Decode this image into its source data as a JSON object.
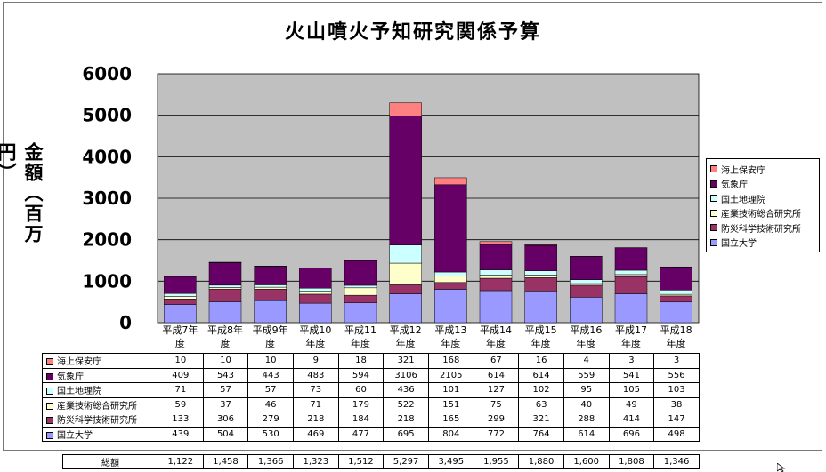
{
  "chart_data": {
    "type": "bar",
    "stacked": true,
    "title": "火山噴火予知研究関係予算",
    "ylabel": "金額（百万円）",
    "xlabel": "",
    "ylim": [
      0,
      6000
    ],
    "yticks": [
      "0",
      "1000",
      "2000",
      "3000",
      "4000",
      "5000",
      "6000"
    ],
    "grid": true,
    "legend_position": "right",
    "categories": [
      "平成7年度",
      "平成8年度",
      "平成9年度",
      "平成10年度",
      "平成11年度",
      "平成12年度",
      "平成13年度",
      "平成14年度",
      "平成15年度",
      "平成16年度",
      "平成17年度",
      "平成18年度"
    ],
    "category_lines": [
      [
        "平成7年",
        "度"
      ],
      [
        "平成8年",
        "度"
      ],
      [
        "平成9年",
        "度"
      ],
      [
        "平成10",
        "年度"
      ],
      [
        "平成11",
        "年度"
      ],
      [
        "平成12",
        "年度"
      ],
      [
        "平成13",
        "年度"
      ],
      [
        "平成14",
        "年度"
      ],
      [
        "平成15",
        "年度"
      ],
      [
        "平成16",
        "年度"
      ],
      [
        "平成17",
        "年度"
      ],
      [
        "平成18",
        "年度"
      ]
    ],
    "series": [
      {
        "name": "国立大学",
        "color": "#9999ff",
        "values": [
          439,
          504,
          530,
          469,
          477,
          695,
          804,
          772,
          764,
          614,
          696,
          498
        ]
      },
      {
        "name": "防災科学技術研究所",
        "color": "#993366",
        "values": [
          133,
          306,
          279,
          218,
          184,
          218,
          165,
          299,
          321,
          288,
          414,
          147
        ]
      },
      {
        "name": "産業技術総合研究所",
        "color": "#ffffcc",
        "values": [
          59,
          37,
          46,
          71,
          179,
          522,
          151,
          75,
          63,
          40,
          49,
          38
        ]
      },
      {
        "name": "国土地理院",
        "color": "#ccffff",
        "values": [
          71,
          57,
          57,
          73,
          60,
          436,
          101,
          127,
          102,
          95,
          105,
          103
        ]
      },
      {
        "name": "気象庁",
        "color": "#660066",
        "values": [
          409,
          543,
          443,
          483,
          594,
          3106,
          2105,
          614,
          614,
          559,
          541,
          556
        ]
      },
      {
        "name": "海上保安庁",
        "color": "#ff8080",
        "values": [
          10,
          10,
          10,
          9,
          18,
          321,
          168,
          67,
          16,
          4,
          3,
          3
        ]
      }
    ],
    "table_rows": [
      {
        "label": "海上保安庁",
        "color": "#ff8080",
        "cells": [
          "10",
          "10",
          "10",
          "9",
          "18",
          "321",
          "168",
          "67",
          "16",
          "4",
          "3",
          "3"
        ]
      },
      {
        "label": "気象庁",
        "color": "#660066",
        "cells": [
          "409",
          "543",
          "443",
          "483",
          "594",
          "3106",
          "2105",
          "614",
          "614",
          "559",
          "541",
          "556"
        ]
      },
      {
        "label": "国土地理院",
        "color": "#ccffff",
        "cells": [
          "71",
          "57",
          "57",
          "73",
          "60",
          "436",
          "101",
          "127",
          "102",
          "95",
          "105",
          "103"
        ]
      },
      {
        "label": "産業技術総合研究所",
        "color": "#ffffcc",
        "cells": [
          "59",
          "37",
          "46",
          "71",
          "179",
          "522",
          "151",
          "75",
          "63",
          "40",
          "49",
          "38"
        ]
      },
      {
        "label": "防災科学技術研究所",
        "color": "#993366",
        "cells": [
          "133",
          "306",
          "279",
          "218",
          "184",
          "218",
          "165",
          "299",
          "321",
          "288",
          "414",
          "147"
        ]
      },
      {
        "label": "国立大学",
        "color": "#9999ff",
        "cells": [
          "439",
          "504",
          "530",
          "469",
          "477",
          "695",
          "804",
          "772",
          "764",
          "614",
          "696",
          "498"
        ]
      }
    ],
    "total_label": "総額",
    "totals": [
      "1,122",
      "1,458",
      "1,366",
      "1,323",
      "1,512",
      "5,297",
      "3,495",
      "1,955",
      "1,880",
      "1,600",
      "1,808",
      "1,346"
    ],
    "legend_order": [
      "海上保安庁",
      "気象庁",
      "国土地理院",
      "産業技術総合研究所",
      "防災科学技術研究所",
      "国立大学"
    ],
    "plot_background": "#c0c0c0"
  }
}
